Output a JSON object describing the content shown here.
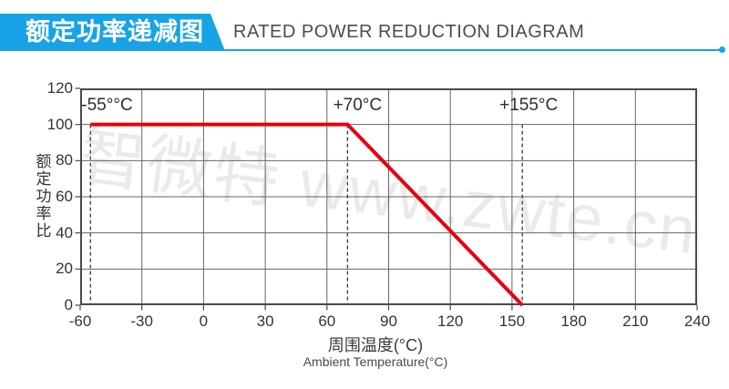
{
  "header": {
    "banner_title": "额定功率递减图",
    "title_en": "RATED POWER REDUCTION DIAGRAM",
    "accent_color": "#18a3e6"
  },
  "watermark": {
    "text": "智微特 www.zwte.cn"
  },
  "chart_data": {
    "type": "line",
    "title": "RATED POWER REDUCTION DIAGRAM",
    "xlabel": "周围温度(°C)",
    "xlabel_en": "Ambient Temperature(°C)",
    "ylabel": "额定功率比",
    "xlim": [
      -60,
      240
    ],
    "ylim": [
      0,
      120
    ],
    "x_ticks": [
      -60,
      -30,
      0,
      30,
      60,
      90,
      120,
      150,
      180,
      210,
      240
    ],
    "y_ticks": [
      0,
      20,
      40,
      60,
      80,
      100,
      120
    ],
    "grid": true,
    "legend_position": "none",
    "grid_color": "#666666",
    "border_color": "#4a4a4a",
    "series": [
      {
        "name": "rated-power-ratio",
        "color": "#e60012",
        "points": [
          [
            -55,
            100
          ],
          [
            70,
            100
          ],
          [
            155,
            0
          ]
        ]
      }
    ],
    "guide_lines": [
      {
        "x": -55,
        "y_from": 100,
        "y_to": 0
      },
      {
        "x": 70,
        "y_from": 100,
        "y_to": 0
      },
      {
        "x": 155,
        "y_from": 100,
        "y_to": 0
      }
    ],
    "annotations": [
      {
        "text": "-55°°C",
        "x": -55,
        "anchor": "start",
        "dx": -10
      },
      {
        "text": "+70°C",
        "x": 70,
        "anchor": "middle",
        "dx": 11
      },
      {
        "text": "+155°C",
        "x": 155,
        "anchor": "middle",
        "dx": 7
      }
    ]
  }
}
